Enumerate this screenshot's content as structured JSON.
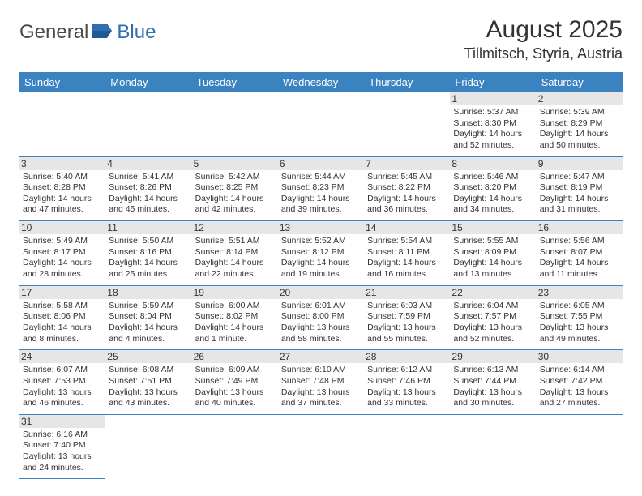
{
  "logo": {
    "text1": "General",
    "text2": "Blue"
  },
  "title": {
    "month": "August 2025",
    "location": "Tillmitsch, Styria, Austria"
  },
  "colors": {
    "header_bg": "#3b83c0",
    "header_text": "#ffffff",
    "daynum_bg": "#e6e6e6",
    "border": "#3b83c0",
    "text": "#333333",
    "logo_gray": "#4a4a4a",
    "logo_blue": "#2f6fb0"
  },
  "day_headers": [
    "Sunday",
    "Monday",
    "Tuesday",
    "Wednesday",
    "Thursday",
    "Friday",
    "Saturday"
  ],
  "weeks": [
    [
      null,
      null,
      null,
      null,
      null,
      {
        "n": "1",
        "sr": "5:37 AM",
        "ss": "8:30 PM",
        "dl": "14 hours and 52 minutes."
      },
      {
        "n": "2",
        "sr": "5:39 AM",
        "ss": "8:29 PM",
        "dl": "14 hours and 50 minutes."
      }
    ],
    [
      {
        "n": "3",
        "sr": "5:40 AM",
        "ss": "8:28 PM",
        "dl": "14 hours and 47 minutes."
      },
      {
        "n": "4",
        "sr": "5:41 AM",
        "ss": "8:26 PM",
        "dl": "14 hours and 45 minutes."
      },
      {
        "n": "5",
        "sr": "5:42 AM",
        "ss": "8:25 PM",
        "dl": "14 hours and 42 minutes."
      },
      {
        "n": "6",
        "sr": "5:44 AM",
        "ss": "8:23 PM",
        "dl": "14 hours and 39 minutes."
      },
      {
        "n": "7",
        "sr": "5:45 AM",
        "ss": "8:22 PM",
        "dl": "14 hours and 36 minutes."
      },
      {
        "n": "8",
        "sr": "5:46 AM",
        "ss": "8:20 PM",
        "dl": "14 hours and 34 minutes."
      },
      {
        "n": "9",
        "sr": "5:47 AM",
        "ss": "8:19 PM",
        "dl": "14 hours and 31 minutes."
      }
    ],
    [
      {
        "n": "10",
        "sr": "5:49 AM",
        "ss": "8:17 PM",
        "dl": "14 hours and 28 minutes."
      },
      {
        "n": "11",
        "sr": "5:50 AM",
        "ss": "8:16 PM",
        "dl": "14 hours and 25 minutes."
      },
      {
        "n": "12",
        "sr": "5:51 AM",
        "ss": "8:14 PM",
        "dl": "14 hours and 22 minutes."
      },
      {
        "n": "13",
        "sr": "5:52 AM",
        "ss": "8:12 PM",
        "dl": "14 hours and 19 minutes."
      },
      {
        "n": "14",
        "sr": "5:54 AM",
        "ss": "8:11 PM",
        "dl": "14 hours and 16 minutes."
      },
      {
        "n": "15",
        "sr": "5:55 AM",
        "ss": "8:09 PM",
        "dl": "14 hours and 13 minutes."
      },
      {
        "n": "16",
        "sr": "5:56 AM",
        "ss": "8:07 PM",
        "dl": "14 hours and 11 minutes."
      }
    ],
    [
      {
        "n": "17",
        "sr": "5:58 AM",
        "ss": "8:06 PM",
        "dl": "14 hours and 8 minutes."
      },
      {
        "n": "18",
        "sr": "5:59 AM",
        "ss": "8:04 PM",
        "dl": "14 hours and 4 minutes."
      },
      {
        "n": "19",
        "sr": "6:00 AM",
        "ss": "8:02 PM",
        "dl": "14 hours and 1 minute."
      },
      {
        "n": "20",
        "sr": "6:01 AM",
        "ss": "8:00 PM",
        "dl": "13 hours and 58 minutes."
      },
      {
        "n": "21",
        "sr": "6:03 AM",
        "ss": "7:59 PM",
        "dl": "13 hours and 55 minutes."
      },
      {
        "n": "22",
        "sr": "6:04 AM",
        "ss": "7:57 PM",
        "dl": "13 hours and 52 minutes."
      },
      {
        "n": "23",
        "sr": "6:05 AM",
        "ss": "7:55 PM",
        "dl": "13 hours and 49 minutes."
      }
    ],
    [
      {
        "n": "24",
        "sr": "6:07 AM",
        "ss": "7:53 PM",
        "dl": "13 hours and 46 minutes."
      },
      {
        "n": "25",
        "sr": "6:08 AM",
        "ss": "7:51 PM",
        "dl": "13 hours and 43 minutes."
      },
      {
        "n": "26",
        "sr": "6:09 AM",
        "ss": "7:49 PM",
        "dl": "13 hours and 40 minutes."
      },
      {
        "n": "27",
        "sr": "6:10 AM",
        "ss": "7:48 PM",
        "dl": "13 hours and 37 minutes."
      },
      {
        "n": "28",
        "sr": "6:12 AM",
        "ss": "7:46 PM",
        "dl": "13 hours and 33 minutes."
      },
      {
        "n": "29",
        "sr": "6:13 AM",
        "ss": "7:44 PM",
        "dl": "13 hours and 30 minutes."
      },
      {
        "n": "30",
        "sr": "6:14 AM",
        "ss": "7:42 PM",
        "dl": "13 hours and 27 minutes."
      }
    ],
    [
      {
        "n": "31",
        "sr": "6:16 AM",
        "ss": "7:40 PM",
        "dl": "13 hours and 24 minutes."
      },
      null,
      null,
      null,
      null,
      null,
      null
    ]
  ],
  "labels": {
    "sunrise": "Sunrise:",
    "sunset": "Sunset:",
    "daylight": "Daylight:"
  }
}
